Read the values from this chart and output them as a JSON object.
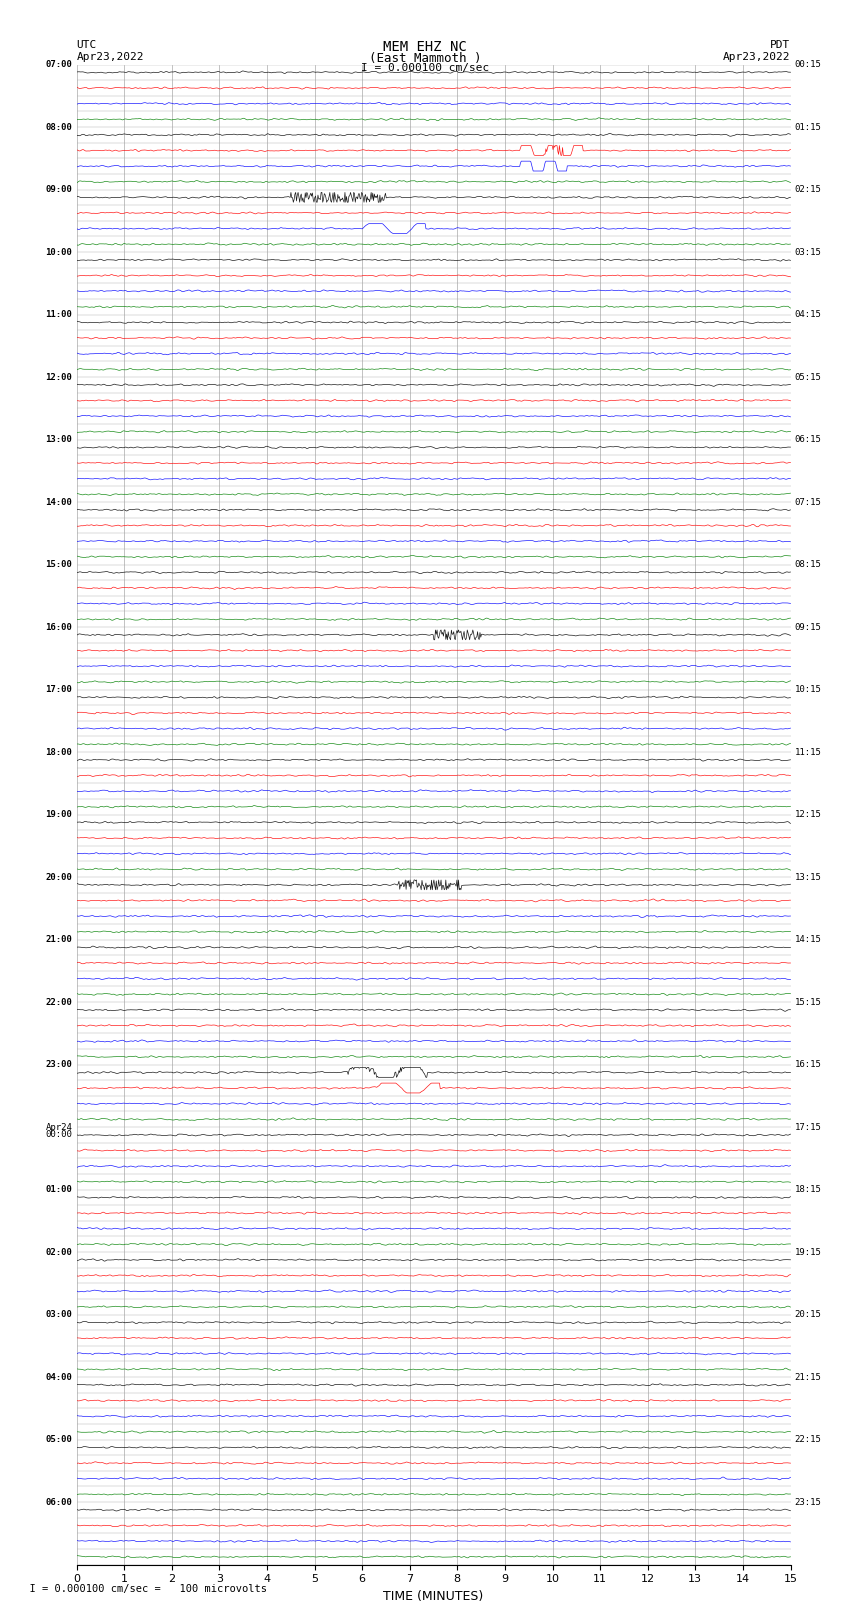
{
  "title_line1": "MEM EHZ NC",
  "title_line2": "(East Mammoth )",
  "title_line3": "I = 0.000100 cm/sec",
  "left_label_top": "UTC",
  "left_label_date": "Apr23,2022",
  "right_label_top": "PDT",
  "right_label_date": "Apr23,2022",
  "xlabel": "TIME (MINUTES)",
  "bottom_note": "  I = 0.000100 cm/sec =   100 microvolts",
  "utc_times": [
    "07:00",
    "",
    "",
    "",
    "08:00",
    "",
    "",
    "",
    "09:00",
    "",
    "",
    "",
    "10:00",
    "",
    "",
    "",
    "11:00",
    "",
    "",
    "",
    "12:00",
    "",
    "",
    "",
    "13:00",
    "",
    "",
    "",
    "14:00",
    "",
    "",
    "",
    "15:00",
    "",
    "",
    "",
    "16:00",
    "",
    "",
    "",
    "17:00",
    "",
    "",
    "",
    "18:00",
    "",
    "",
    "",
    "19:00",
    "",
    "",
    "",
    "20:00",
    "",
    "",
    "",
    "21:00",
    "",
    "",
    "",
    "22:00",
    "",
    "",
    "",
    "23:00",
    "",
    "",
    "",
    "Apr24\n00:00",
    "",
    "",
    "",
    "01:00",
    "",
    "",
    "",
    "02:00",
    "",
    "",
    "",
    "03:00",
    "",
    "",
    "",
    "04:00",
    "",
    "",
    "",
    "05:00",
    "",
    "",
    "",
    "06:00"
  ],
  "pdt_times": [
    "00:15",
    "",
    "",
    "",
    "01:15",
    "",
    "",
    "",
    "02:15",
    "",
    "",
    "",
    "03:15",
    "",
    "",
    "",
    "04:15",
    "",
    "",
    "",
    "05:15",
    "",
    "",
    "",
    "06:15",
    "",
    "",
    "",
    "07:15",
    "",
    "",
    "",
    "08:15",
    "",
    "",
    "",
    "09:15",
    "",
    "",
    "",
    "10:15",
    "",
    "",
    "",
    "11:15",
    "",
    "",
    "",
    "12:15",
    "",
    "",
    "",
    "13:15",
    "",
    "",
    "",
    "14:15",
    "",
    "",
    "",
    "15:15",
    "",
    "",
    "",
    "16:15",
    "",
    "",
    "",
    "17:15",
    "",
    "",
    "",
    "18:15",
    "",
    "",
    "",
    "19:15",
    "",
    "",
    "",
    "20:15",
    "",
    "",
    "",
    "21:15",
    "",
    "",
    "",
    "22:15",
    "",
    "",
    "",
    "23:15"
  ],
  "n_rows": 96,
  "n_cols": 4,
  "time_minutes": 15,
  "colors_cycle": [
    "black",
    "red",
    "blue",
    "green"
  ],
  "bg_color": "#ffffff",
  "plot_bg_color": "#ffffff",
  "grid_color": "#aaaaaa",
  "trace_amplitude": 0.35,
  "spike_row": 5,
  "spike_row2": 8,
  "noise_seed": 42
}
